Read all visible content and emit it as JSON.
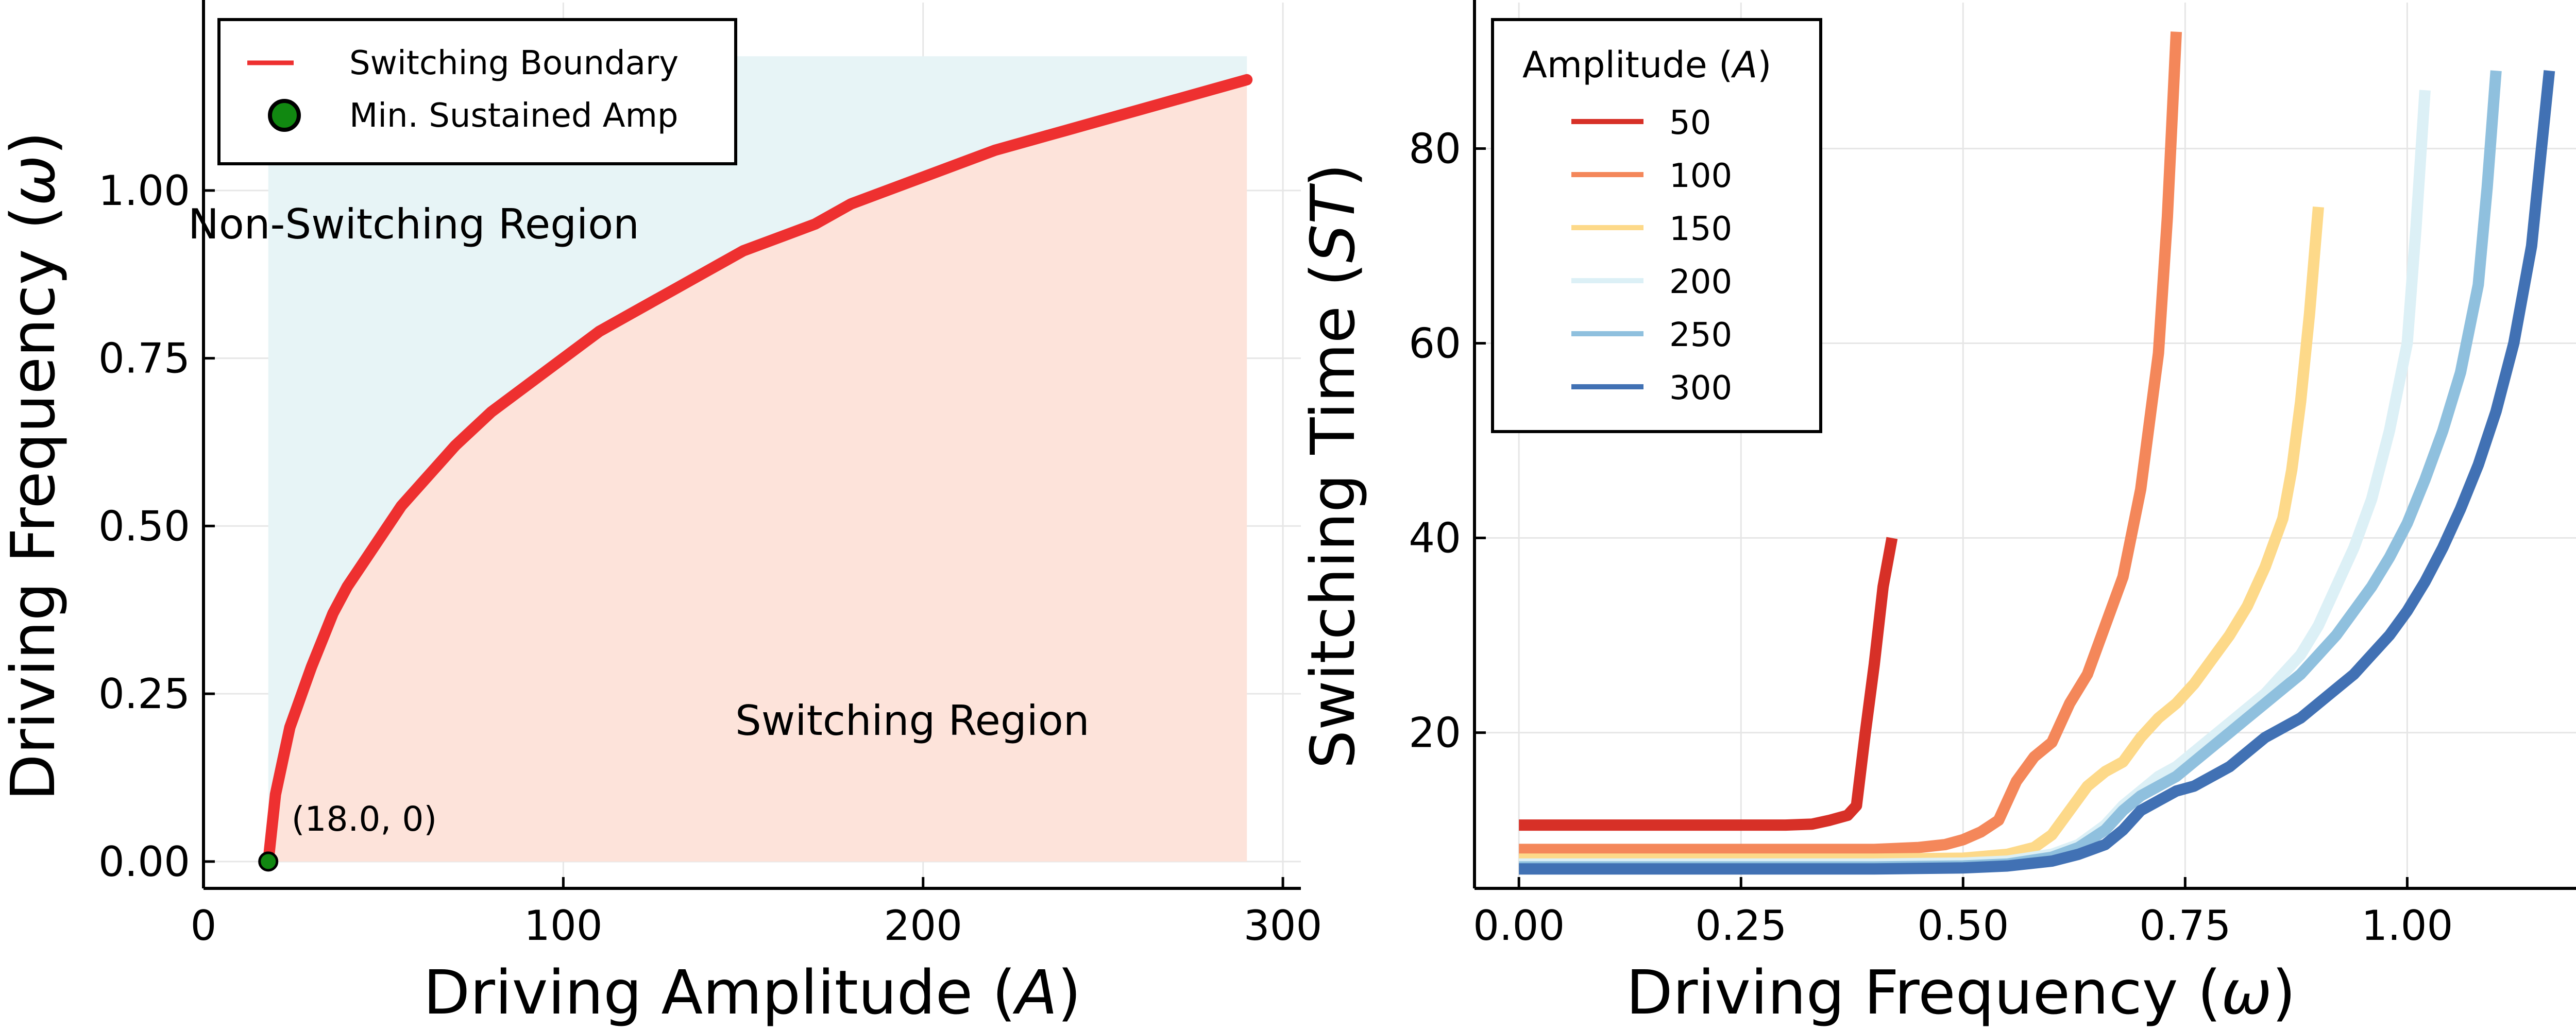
{
  "colors": {
    "non_switching_fill": "#e7f4f6",
    "switching_fill": "#fde3da",
    "boundary_line": "#ee3030",
    "marker": "#118811",
    "non_switching_text": "#f08c1c",
    "switching_text": "#0d0d8a",
    "annotation_text": "#1a7a1a",
    "grid": "#e6e6e6"
  },
  "chart_data": [
    {
      "type": "area",
      "xlabel_main": "Driving Amplitude (",
      "xlabel_var": "A",
      "xlabel_end": ")",
      "ylabel_main": "Driving Frequency (",
      "ylabel_var": "ω",
      "ylabel_end": ")",
      "xlim": [
        0,
        305
      ],
      "ylim": [
        -0.04,
        1.28
      ],
      "xticks": [
        0,
        100,
        200,
        300
      ],
      "xtick_labels": [
        "0",
        "100",
        "200",
        "300"
      ],
      "yticks": [
        0,
        0.25,
        0.5,
        0.75,
        1.0
      ],
      "ytick_labels": [
        "0.00",
        "0.25",
        "0.50",
        "0.75",
        "1.00"
      ],
      "grid": true,
      "legend_placement": "upper left",
      "region_top": 1.2,
      "region_x_range": [
        18,
        290
      ],
      "boundary": {
        "name": "Switching Boundary",
        "x": [
          18,
          19,
          20,
          22,
          24,
          26,
          28,
          30,
          33,
          36,
          40,
          45,
          50,
          55,
          60,
          70,
          80,
          90,
          100,
          110,
          120,
          130,
          140,
          150,
          160,
          170,
          180,
          190,
          200,
          210,
          220,
          230,
          240,
          250,
          260,
          270,
          280,
          290
        ],
        "y": [
          0,
          0.05,
          0.1,
          0.15,
          0.2,
          0.23,
          0.26,
          0.29,
          0.33,
          0.37,
          0.41,
          0.45,
          0.49,
          0.53,
          0.56,
          0.62,
          0.67,
          0.71,
          0.75,
          0.79,
          0.82,
          0.85,
          0.88,
          0.91,
          0.93,
          0.95,
          0.98,
          1.0,
          1.02,
          1.04,
          1.06,
          1.075,
          1.09,
          1.105,
          1.12,
          1.135,
          1.15,
          1.165
        ]
      },
      "min_point": {
        "name": "Min. Sustained Amp",
        "x": 18,
        "y": 0,
        "label": "(18.0, 0)"
      },
      "annotations": [
        {
          "text": "Non-Switching Region",
          "x": 62,
          "y": 0.95
        },
        {
          "text": "Switching Region",
          "x": 197,
          "y": 0.21
        }
      ]
    },
    {
      "type": "line",
      "xlabel_main": "Driving Frequency (",
      "xlabel_var": "ω",
      "xlabel_end": ")",
      "ylabel_main": "Switching Time (",
      "ylabel_var": "ST",
      "ylabel_end": ")",
      "xlim": [
        -0.05,
        1.19
      ],
      "ylim": [
        4,
        95
      ],
      "xticks": [
        0,
        0.25,
        0.5,
        0.75,
        1.0
      ],
      "xtick_labels": [
        "0.00",
        "0.25",
        "0.50",
        "0.75",
        "1.00"
      ],
      "yticks": [
        20,
        40,
        60,
        80
      ],
      "ytick_labels": [
        "20",
        "40",
        "60",
        "80"
      ],
      "grid": true,
      "legend_title_main": "Amplitude (",
      "legend_title_var": "A",
      "legend_title_end": ")",
      "legend_placement": "upper left",
      "series": [
        {
          "name": "50",
          "color": "#d73027",
          "x": [
            0,
            0.05,
            0.1,
            0.15,
            0.2,
            0.25,
            0.3,
            0.33,
            0.35,
            0.37,
            0.38,
            0.39,
            0.4,
            0.41,
            0.42
          ],
          "y": [
            10.5,
            10.5,
            10.5,
            10.5,
            10.5,
            10.5,
            10.5,
            10.6,
            11,
            11.5,
            12.5,
            20,
            27,
            35,
            40
          ]
        },
        {
          "name": "100",
          "color": "#f4875a",
          "x": [
            0,
            0.1,
            0.2,
            0.3,
            0.4,
            0.45,
            0.48,
            0.5,
            0.52,
            0.54,
            0.56,
            0.58,
            0.6,
            0.62,
            0.64,
            0.66,
            0.68,
            0.7,
            0.72,
            0.73,
            0.74
          ],
          "y": [
            8,
            8,
            8,
            8,
            8,
            8.2,
            8.5,
            9,
            9.8,
            11,
            15,
            17.5,
            19,
            23,
            26,
            31,
            36,
            45,
            59,
            73,
            92
          ]
        },
        {
          "name": "150",
          "color": "#fdd989",
          "x": [
            0,
            0.1,
            0.2,
            0.3,
            0.4,
            0.5,
            0.55,
            0.58,
            0.6,
            0.62,
            0.64,
            0.66,
            0.68,
            0.7,
            0.72,
            0.74,
            0.76,
            0.78,
            0.8,
            0.82,
            0.84,
            0.86,
            0.87,
            0.88,
            0.89,
            0.9
          ],
          "y": [
            7,
            7,
            7,
            7,
            7,
            7.1,
            7.5,
            8.2,
            9.5,
            12,
            14.5,
            16,
            17,
            19.5,
            21.5,
            23,
            25,
            27.5,
            30,
            33,
            37,
            42,
            47,
            54,
            63,
            74
          ]
        },
        {
          "name": "200",
          "color": "#dcf0f6",
          "x": [
            0,
            0.1,
            0.2,
            0.3,
            0.4,
            0.5,
            0.55,
            0.6,
            0.63,
            0.66,
            0.68,
            0.7,
            0.72,
            0.74,
            0.76,
            0.78,
            0.8,
            0.82,
            0.84,
            0.86,
            0.88,
            0.9,
            0.92,
            0.94,
            0.96,
            0.98,
            1.0,
            1.01,
            1.02
          ],
          "y": [
            6.5,
            6.5,
            6.5,
            6.5,
            6.5,
            6.6,
            6.8,
            7.5,
            8.5,
            10.5,
            12.5,
            14,
            15.5,
            16.5,
            18,
            19.5,
            21,
            22.5,
            24,
            26,
            28,
            31,
            35,
            39,
            44,
            51,
            60,
            72,
            86
          ]
        },
        {
          "name": "250",
          "color": "#8fc0de",
          "x": [
            0,
            0.1,
            0.2,
            0.3,
            0.4,
            0.5,
            0.55,
            0.6,
            0.63,
            0.66,
            0.68,
            0.7,
            0.72,
            0.74,
            0.76,
            0.78,
            0.8,
            0.82,
            0.84,
            0.86,
            0.88,
            0.9,
            0.92,
            0.94,
            0.96,
            0.98,
            1.0,
            1.02,
            1.04,
            1.06,
            1.08,
            1.09,
            1.1
          ],
          "y": [
            6.2,
            6.2,
            6.2,
            6.2,
            6.2,
            6.3,
            6.5,
            7.2,
            8.2,
            10,
            12,
            13.5,
            14.5,
            15.5,
            17,
            18.5,
            20,
            21.5,
            23,
            24.5,
            26,
            28,
            30,
            32.5,
            35,
            38,
            41.5,
            46,
            51,
            57,
            66,
            76,
            88
          ]
        },
        {
          "name": "300",
          "color": "#4171b4",
          "x": [
            0,
            0.1,
            0.2,
            0.3,
            0.4,
            0.5,
            0.55,
            0.6,
            0.63,
            0.66,
            0.68,
            0.7,
            0.72,
            0.74,
            0.76,
            0.78,
            0.8,
            0.82,
            0.84,
            0.86,
            0.88,
            0.9,
            0.92,
            0.94,
            0.96,
            0.98,
            1.0,
            1.02,
            1.04,
            1.06,
            1.08,
            1.1,
            1.12,
            1.14,
            1.15,
            1.16
          ],
          "y": [
            6,
            6,
            6,
            6,
            6,
            6.1,
            6.3,
            6.8,
            7.5,
            8.5,
            10,
            12,
            13,
            14,
            14.5,
            15.5,
            16.5,
            18,
            19.5,
            20.5,
            21.5,
            23,
            24.5,
            26,
            28,
            30,
            32.5,
            35.5,
            39,
            43,
            47.5,
            53,
            60,
            70,
            79,
            88
          ]
        }
      ]
    }
  ]
}
